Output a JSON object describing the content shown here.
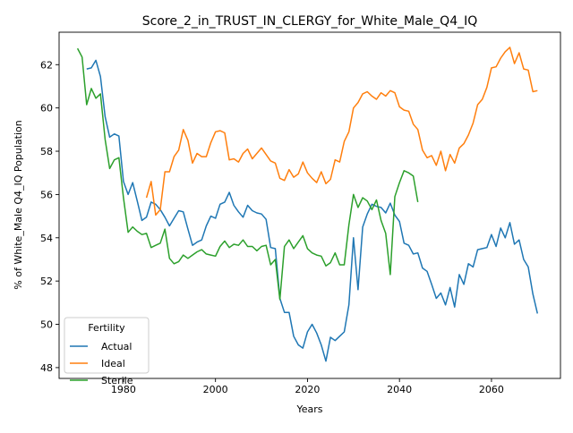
{
  "chart_data": {
    "type": "line",
    "title": "Score_2_in_TRUST_IN_CLERGY_for_White_Male_Q4_IQ",
    "xlabel": "Years",
    "ylabel": "% of White_Male Q4_IQ Population",
    "xlim": [
      1966,
      2075
    ],
    "ylim": [
      47.5,
      63.5
    ],
    "xticks": [
      1980,
      2000,
      2020,
      2040,
      2060
    ],
    "yticks": [
      48,
      50,
      52,
      54,
      56,
      58,
      60,
      62
    ],
    "grid": false,
    "legend": {
      "title": "Fertility",
      "position": "lower-left"
    },
    "series": [
      {
        "name": "Actual",
        "color": "#1f77b4",
        "x": [
          1972,
          1973,
          1974,
          1975,
          1976,
          1977,
          1978,
          1979,
          1980,
          1981,
          1982,
          1983,
          1984,
          1985,
          1986,
          1987,
          1988,
          1989,
          1990,
          1991,
          1992,
          1993,
          1994,
          1995,
          1996,
          1997,
          1998,
          1999,
          2000,
          2001,
          2002,
          2003,
          2004,
          2005,
          2006,
          2007,
          2008,
          2009,
          2010,
          2011,
          2012,
          2013,
          2014,
          2015,
          2016,
          2017,
          2018,
          2019,
          2020,
          2021,
          2022,
          2023,
          2024,
          2025,
          2026,
          2027,
          2028,
          2029,
          2030,
          2031,
          2032,
          2033,
          2034,
          2035,
          2036,
          2037,
          2038,
          2039,
          2040,
          2041,
          2042,
          2043,
          2044,
          2045,
          2046,
          2047,
          2048,
          2049,
          2050,
          2051,
          2052,
          2053,
          2054,
          2055,
          2056,
          2057,
          2058,
          2059,
          2060,
          2061,
          2062,
          2063,
          2064,
          2065,
          2066,
          2067,
          2068,
          2069,
          2070
        ],
        "values": [
          61.8,
          61.85,
          62.2,
          61.45,
          59.6,
          58.65,
          58.8,
          58.7,
          56.6,
          56.0,
          56.55,
          55.7,
          54.8,
          54.95,
          55.65,
          55.55,
          55.3,
          54.95,
          54.55,
          54.9,
          55.25,
          55.2,
          54.4,
          53.65,
          53.8,
          53.9,
          54.55,
          55.0,
          54.9,
          55.55,
          55.65,
          56.1,
          55.5,
          55.2,
          54.95,
          55.5,
          55.25,
          55.15,
          55.1,
          54.85,
          53.55,
          53.5,
          51.2,
          50.55,
          50.55,
          49.45,
          49.05,
          48.9,
          49.65,
          50.0,
          49.6,
          49.05,
          48.3,
          49.4,
          49.25,
          49.45,
          49.65,
          50.9,
          54.0,
          51.6,
          54.5,
          55.1,
          55.55,
          55.45,
          55.4,
          55.15,
          55.6,
          55.05,
          54.75,
          53.75,
          53.65,
          53.25,
          53.3,
          52.6,
          52.45,
          51.85,
          51.2,
          51.45,
          50.9,
          51.7,
          50.8,
          52.3,
          51.85,
          52.8,
          52.65,
          53.45,
          53.5,
          53.55,
          54.15,
          53.6,
          54.45,
          54.0,
          54.7,
          53.7,
          53.9,
          53.0,
          52.65,
          51.4,
          50.5
        ]
      },
      {
        "name": "Ideal",
        "color": "#ff7f0e",
        "x": [
          1985,
          1986,
          1987,
          1988,
          1989,
          1990,
          1991,
          1992,
          1993,
          1994,
          1995,
          1996,
          1997,
          1998,
          1999,
          2000,
          2001,
          2002,
          2003,
          2004,
          2005,
          2006,
          2007,
          2008,
          2009,
          2010,
          2011,
          2012,
          2013,
          2014,
          2015,
          2016,
          2017,
          2018,
          2019,
          2020,
          2021,
          2022,
          2023,
          2024,
          2025,
          2026,
          2027,
          2028,
          2029,
          2030,
          2031,
          2032,
          2033,
          2034,
          2035,
          2036,
          2037,
          2038,
          2039,
          2040,
          2041,
          2042,
          2043,
          2044,
          2045,
          2046,
          2047,
          2048,
          2049,
          2050,
          2051,
          2052,
          2053,
          2054,
          2055,
          2056,
          2057,
          2058,
          2059,
          2060,
          2061,
          2062,
          2063,
          2064,
          2065,
          2066,
          2067,
          2068,
          2069,
          2070
        ],
        "values": [
          55.85,
          56.6,
          55.05,
          55.3,
          57.05,
          57.05,
          57.75,
          58.05,
          59.0,
          58.5,
          57.45,
          57.9,
          57.75,
          57.75,
          58.4,
          58.9,
          58.95,
          58.85,
          57.6,
          57.65,
          57.5,
          57.9,
          58.1,
          57.65,
          57.9,
          58.15,
          57.85,
          57.55,
          57.45,
          56.75,
          56.65,
          57.15,
          56.8,
          56.95,
          57.5,
          57.0,
          56.75,
          56.55,
          57.05,
          56.5,
          56.7,
          57.6,
          57.5,
          58.45,
          58.9,
          60.0,
          60.25,
          60.65,
          60.75,
          60.55,
          60.4,
          60.7,
          60.55,
          60.8,
          60.7,
          60.05,
          59.9,
          59.85,
          59.25,
          59.0,
          58.05,
          57.7,
          57.8,
          57.35,
          58.0,
          57.1,
          57.85,
          57.45,
          58.15,
          58.35,
          58.75,
          59.3,
          60.15,
          60.4,
          60.95,
          61.85,
          61.9,
          62.3,
          62.6,
          62.8,
          62.05,
          62.55,
          61.8,
          61.75,
          60.75,
          60.8
        ]
      },
      {
        "name": "Sterile",
        "color": "#2ca02c",
        "x": [
          1970,
          1971,
          1972,
          1973,
          1974,
          1975,
          1976,
          1977,
          1978,
          1979,
          1980,
          1981,
          1982,
          1983,
          1984,
          1985,
          1986,
          1987,
          1988,
          1989,
          1990,
          1991,
          1992,
          1993,
          1994,
          1995,
          1996,
          1997,
          1998,
          1999,
          2000,
          2001,
          2002,
          2003,
          2004,
          2005,
          2006,
          2007,
          2008,
          2009,
          2010,
          2011,
          2012,
          2013,
          2014,
          2015,
          2016,
          2017,
          2018,
          2019,
          2020,
          2021,
          2022,
          2023,
          2024,
          2025,
          2026,
          2027,
          2028,
          2029,
          2030,
          2031,
          2032,
          2033,
          2034,
          2035,
          2036,
          2037,
          2038,
          2039,
          2040,
          2041,
          2042,
          2043,
          2044
        ],
        "values": [
          62.75,
          62.35,
          60.15,
          60.9,
          60.45,
          60.65,
          58.55,
          57.2,
          57.6,
          57.7,
          55.85,
          54.25,
          54.5,
          54.3,
          54.15,
          54.2,
          53.55,
          53.65,
          53.75,
          54.4,
          53.05,
          52.8,
          52.9,
          53.2,
          53.05,
          53.2,
          53.35,
          53.45,
          53.25,
          53.2,
          53.15,
          53.6,
          53.85,
          53.55,
          53.7,
          53.65,
          53.9,
          53.6,
          53.6,
          53.4,
          53.6,
          53.65,
          52.75,
          53.0,
          51.15,
          53.6,
          53.9,
          53.5,
          53.8,
          54.1,
          53.5,
          53.3,
          53.2,
          53.15,
          52.7,
          52.85,
          53.3,
          52.75,
          52.75,
          54.6,
          56.0,
          55.4,
          55.85,
          55.7,
          55.3,
          55.75,
          54.8,
          54.2,
          52.3,
          55.9,
          56.55,
          57.1,
          57.0,
          56.85,
          55.65
        ]
      }
    ]
  }
}
